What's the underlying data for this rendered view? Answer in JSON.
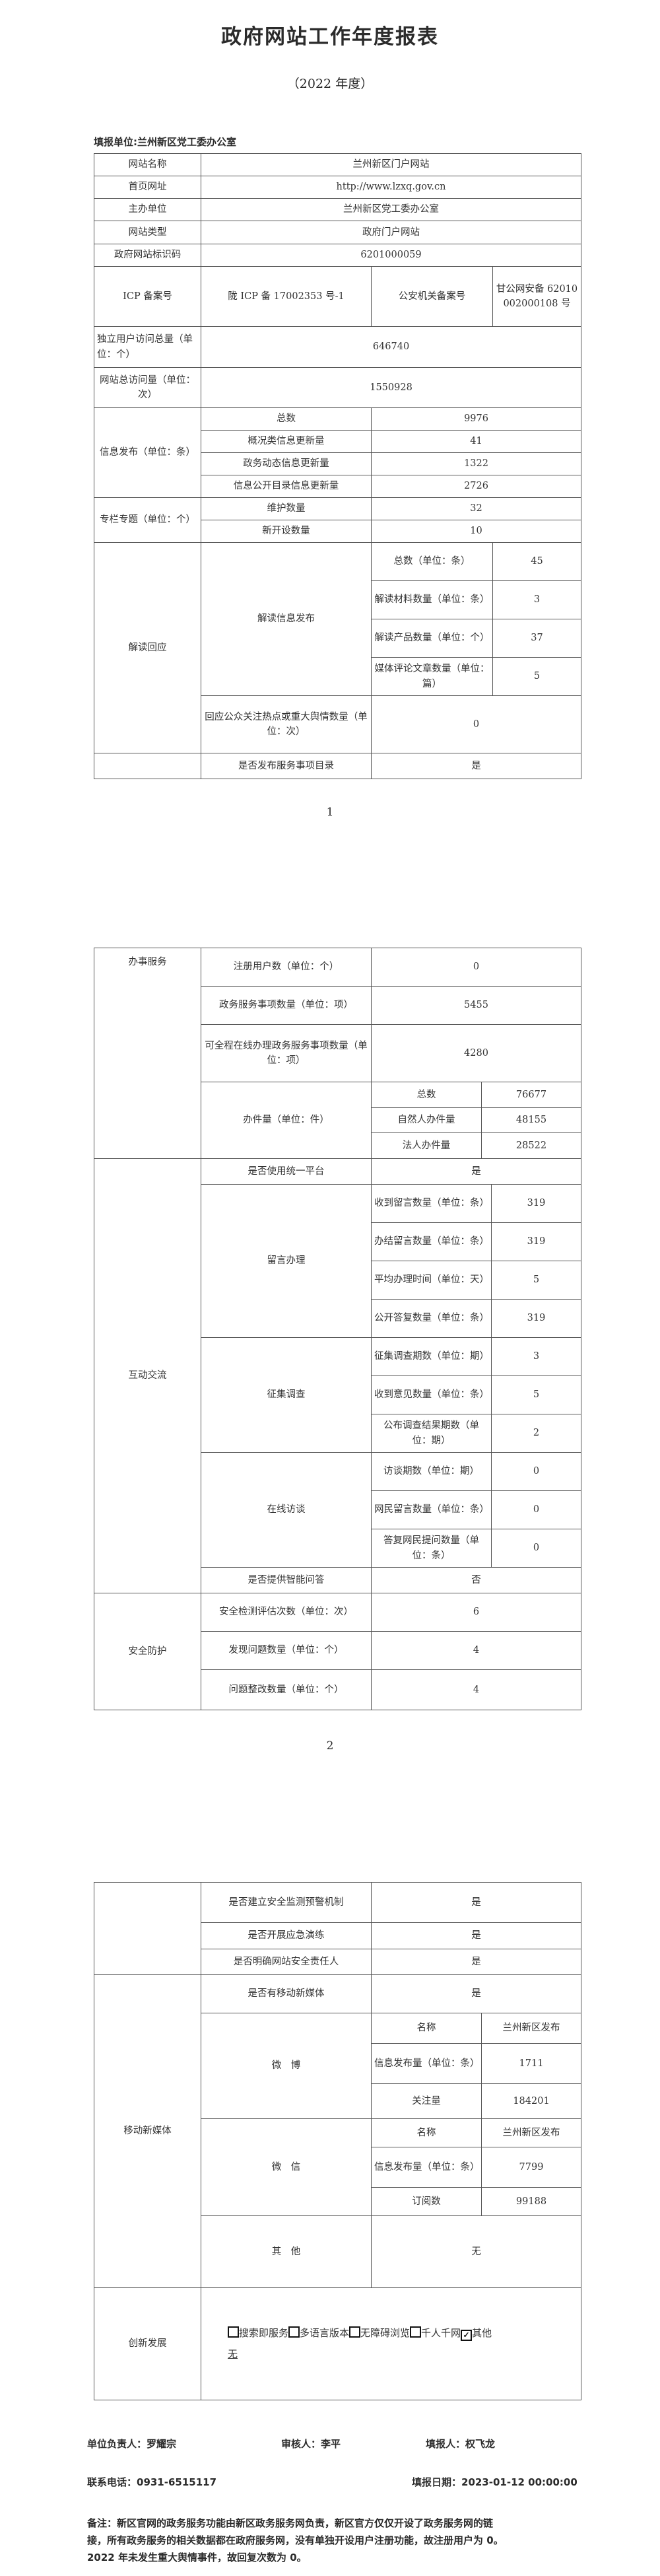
{
  "header": {
    "title": "政府网站工作年度报表",
    "year": "（2022 年度）",
    "filler": "填报单位:兰州新区党工委办公室"
  },
  "basic": {
    "site_name": {
      "label": "网站名称",
      "value": "兰州新区门户网站"
    },
    "homepage": {
      "label": "首页网址",
      "value": "http://www.lzxq.gov.cn"
    },
    "sponsor": {
      "label": "主办单位",
      "value": "兰州新区党工委办公室"
    },
    "type": {
      "label": "网站类型",
      "value": "政府门户网站"
    },
    "code": {
      "label": "政府网站标识码",
      "value": "6201000059"
    },
    "icp": {
      "label": "ICP 备案号",
      "value": "陇 ICP 备 17002353 号-1",
      "police_label": "公安机关备案号",
      "police_value": "甘公网安备 62010002000108 号"
    },
    "uv": {
      "label": "独立用户访问总量（单位：个）",
      "value": "646740"
    },
    "pv": {
      "label": "网站总访问量（单位：次）",
      "value": "1550928"
    }
  },
  "info_publish": {
    "label": "信息发布（单位：条）",
    "items": [
      {
        "label": "总数",
        "value": "9976"
      },
      {
        "label": "概况类信息更新量",
        "value": "41"
      },
      {
        "label": "政务动态信息更新量",
        "value": "1322"
      },
      {
        "label": "信息公开目录信息更新量",
        "value": "2726"
      }
    ]
  },
  "columns": {
    "label": "专栏专题（单位：个）",
    "items": [
      {
        "label": "维护数量",
        "value": "32"
      },
      {
        "label": "新开设数量",
        "value": "10"
      }
    ]
  },
  "interpretation": {
    "label": "解读回应",
    "publish_label": "解读信息发布",
    "items": [
      {
        "label": "总数（单位：条）",
        "value": "45"
      },
      {
        "label": "解读材料数量（单位：条）",
        "value": "3"
      },
      {
        "label": "解读产品数量（单位：个）",
        "value": "37"
      },
      {
        "label": "媒体评论文章数量（单位：篇）",
        "value": "5"
      }
    ],
    "response": {
      "label": "回应公众关注热点或重大舆情数量（单位：次）",
      "value": "0"
    }
  },
  "service_catalog": {
    "label": "是否发布服务事项目录",
    "value": "是"
  },
  "page_numbers": [
    "1",
    "2"
  ],
  "services": {
    "label": "办事服务",
    "registered": {
      "label": "注册用户数（单位：个）",
      "value": "0"
    },
    "items": {
      "label": "政务服务事项数量（单位：项）",
      "value": "5455"
    },
    "online": {
      "label": "可全程在线办理政务服务事项数量（单位：项）",
      "value": "4280"
    },
    "cases": {
      "label": "办件量（单位：件）",
      "items": [
        {
          "label": "总数",
          "value": "76677"
        },
        {
          "label": "自然人办件量",
          "value": "48155"
        },
        {
          "label": "法人办件量",
          "value": "28522"
        }
      ]
    }
  },
  "interaction": {
    "label": "互动交流",
    "unified": {
      "label": "是否使用统一平台",
      "value": "是"
    },
    "messages": {
      "label": "留言办理",
      "items": [
        {
          "label": "收到留言数量（单位：条）",
          "value": "319"
        },
        {
          "label": "办结留言数量（单位：条）",
          "value": "319"
        },
        {
          "label": "平均办理时间（单位：天）",
          "value": "5"
        },
        {
          "label": "公开答复数量（单位：条）",
          "value": "319"
        }
      ]
    },
    "survey": {
      "label": "征集调查",
      "items": [
        {
          "label": "征集调查期数（单位：期）",
          "value": "3"
        },
        {
          "label": "收到意见数量（单位：条）",
          "value": "5"
        },
        {
          "label": "公布调查结果期数（单位：期）",
          "value": "2"
        }
      ]
    },
    "interview": {
      "label": "在线访谈",
      "items": [
        {
          "label": "访谈期数（单位：期）",
          "value": "0"
        },
        {
          "label": "网民留言数量（单位：条）",
          "value": "0"
        },
        {
          "label": "答复网民提问数量（单位：条）",
          "value": "0"
        }
      ]
    },
    "smart_qa": {
      "label": "是否提供智能问答",
      "value": "否"
    }
  },
  "security": {
    "label": "安全防护",
    "items": [
      {
        "label": "安全检测评估次数（单位：次）",
        "value": "6"
      },
      {
        "label": "发现问题数量（单位：个）",
        "value": "4"
      },
      {
        "label": "问题整改数量（单位：个）",
        "value": "4"
      }
    ],
    "warning": {
      "label": "是否建立安全监测预警机制",
      "value": "是"
    },
    "drill": {
      "label": "是否开展应急演练",
      "value": "是"
    },
    "responsible": {
      "label": "是否明确网站安全责任人",
      "value": "是"
    }
  },
  "new_media": {
    "label": "移动新媒体",
    "has": {
      "label": "是否有移动新媒体",
      "value": "是"
    },
    "weibo": {
      "label": "微　博",
      "items": [
        {
          "label": "名称",
          "value": "兰州新区发布"
        },
        {
          "label": "信息发布量（单位：条）",
          "value": "1711"
        },
        {
          "label": "关注量",
          "value": "184201"
        }
      ]
    },
    "wechat": {
      "label": "微　信",
      "items": [
        {
          "label": "名称",
          "value": "兰州新区发布"
        },
        {
          "label": "信息发布量（单位：条）",
          "value": "7799"
        },
        {
          "label": "订阅数",
          "value": "99188"
        }
      ]
    },
    "other": {
      "label": "其　他",
      "value": "无"
    }
  },
  "innovation": {
    "label": "创新发展",
    "options": [
      {
        "label": "搜索即服务",
        "checked": false
      },
      {
        "label": "多语言版本",
        "checked": false
      },
      {
        "label": "无障碍浏览",
        "checked": false
      },
      {
        "label": "千人千网",
        "checked": false
      },
      {
        "label": "其他",
        "checked": true
      }
    ],
    "other_text": "无"
  },
  "footer": {
    "principal": "单位负责人：罗耀宗",
    "reviewer": "审核人：李平",
    "filler": "填报人：权飞龙",
    "phone": "联系电话：0931-6515117",
    "date": "填报日期：2023-01-12 00:00:00",
    "note": "备注：新区官网的政务服务功能由新区政务服务网负责，新区官方仅仅开设了政务服务网的链接，所有政务服务的相关数据都在政府服务网，没有单独开设用户注册功能，故注册用户为 0。 2022 年未发生重大舆情事件，故回复次数为 0。"
  }
}
